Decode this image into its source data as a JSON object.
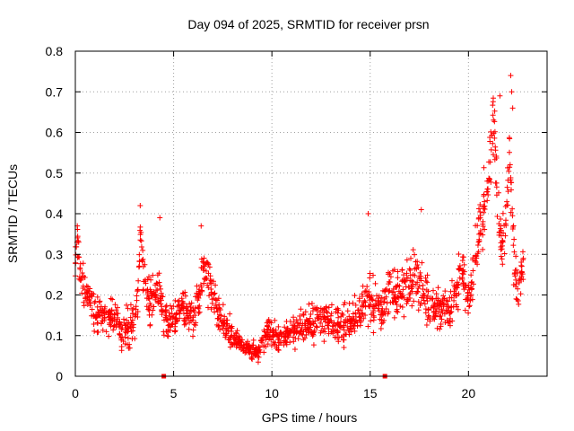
{
  "chart_data": {
    "type": "scatter",
    "title": "Day 094 of 2025, SRMTID for receiver prsn",
    "xlabel": "GPS time / hours",
    "ylabel": "SRMTID / TECUs",
    "xlim": [
      0,
      24
    ],
    "ylim": [
      0,
      0.8
    ],
    "xticks": [
      0,
      5,
      10,
      15,
      20
    ],
    "yticks": [
      0,
      0.1,
      0.2,
      0.3,
      0.4,
      0.5,
      0.6,
      0.7,
      0.8
    ],
    "xtick_labels": [
      "0",
      "5",
      "10",
      "15",
      "20"
    ],
    "ytick_labels": [
      "0",
      "0.1",
      "0.2",
      "0.3",
      "0.4",
      "0.5",
      "0.6",
      "0.7",
      "0.8"
    ],
    "grid": true,
    "marker": "plus",
    "color": "#ff0000",
    "baseline_markers": {
      "marker": "square",
      "x": [
        4.5,
        15.75
      ],
      "y": [
        0,
        0
      ]
    },
    "series_profile": {
      "x": [
        0,
        0.1,
        0.3,
        0.5,
        0.8,
        1.0,
        1.5,
        2.0,
        2.3,
        2.7,
        3.0,
        3.2,
        3.3,
        3.5,
        3.8,
        4.1,
        4.3,
        4.5,
        4.7,
        5.0,
        5.5,
        6.0,
        6.3,
        6.5,
        6.8,
        7.0,
        7.3,
        7.6,
        8.0,
        8.5,
        9.0,
        9.3,
        9.6,
        10.0,
        10.3,
        10.5,
        11.0,
        11.5,
        12.0,
        12.5,
        13.0,
        13.5,
        14.0,
        14.5,
        14.8,
        15.0,
        15.3,
        15.6,
        16.0,
        16.5,
        17.0,
        17.3,
        17.6,
        18.0,
        18.5,
        19.0,
        19.4,
        19.6,
        19.9,
        20.1,
        20.3,
        20.6,
        20.9,
        21.1,
        21.3,
        21.5,
        21.7,
        21.9,
        22.1,
        22.3,
        22.5,
        22.8
      ],
      "y": [
        0.3,
        0.32,
        0.24,
        0.21,
        0.19,
        0.15,
        0.15,
        0.13,
        0.11,
        0.12,
        0.14,
        0.2,
        0.36,
        0.24,
        0.18,
        0.2,
        0.22,
        0.14,
        0.13,
        0.14,
        0.17,
        0.15,
        0.2,
        0.26,
        0.23,
        0.2,
        0.16,
        0.13,
        0.1,
        0.08,
        0.06,
        0.06,
        0.1,
        0.12,
        0.08,
        0.09,
        0.11,
        0.12,
        0.13,
        0.14,
        0.14,
        0.12,
        0.14,
        0.16,
        0.2,
        0.18,
        0.19,
        0.17,
        0.2,
        0.21,
        0.22,
        0.26,
        0.21,
        0.18,
        0.17,
        0.16,
        0.2,
        0.28,
        0.2,
        0.19,
        0.3,
        0.38,
        0.45,
        0.55,
        0.6,
        0.42,
        0.3,
        0.4,
        0.55,
        0.3,
        0.2,
        0.27
      ],
      "spread": [
        0.05,
        0.05,
        0.04,
        0.04,
        0.03,
        0.04,
        0.04,
        0.04,
        0.04,
        0.05,
        0.05,
        0.06,
        0.05,
        0.05,
        0.05,
        0.05,
        0.05,
        0.04,
        0.04,
        0.04,
        0.04,
        0.04,
        0.05,
        0.05,
        0.05,
        0.04,
        0.04,
        0.03,
        0.03,
        0.02,
        0.02,
        0.02,
        0.03,
        0.04,
        0.03,
        0.03,
        0.03,
        0.04,
        0.04,
        0.04,
        0.04,
        0.04,
        0.04,
        0.05,
        0.06,
        0.06,
        0.05,
        0.05,
        0.05,
        0.05,
        0.05,
        0.06,
        0.05,
        0.05,
        0.05,
        0.05,
        0.05,
        0.05,
        0.05,
        0.05,
        0.06,
        0.07,
        0.08,
        0.07,
        0.07,
        0.08,
        0.06,
        0.07,
        0.07,
        0.06,
        0.05,
        0.04
      ]
    },
    "peaks": {
      "x": [
        0.1,
        3.3,
        4.3,
        6.4,
        14.9,
        17.6,
        21.6,
        22.15,
        22.2,
        22.25
      ],
      "y": [
        0.37,
        0.42,
        0.39,
        0.37,
        0.4,
        0.41,
        0.69,
        0.74,
        0.7,
        0.66
      ]
    }
  }
}
